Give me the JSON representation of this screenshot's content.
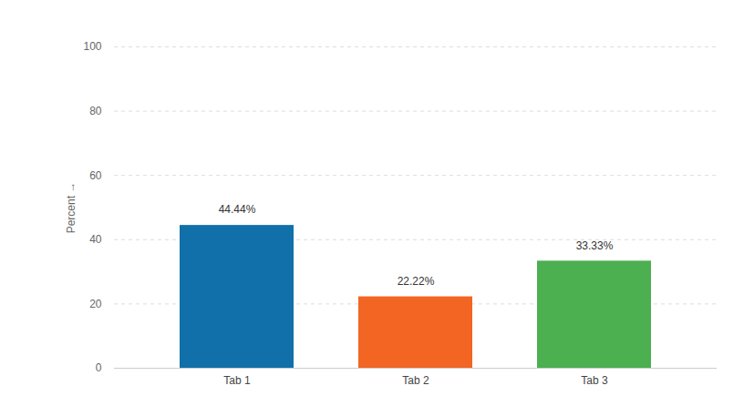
{
  "chart_data": {
    "type": "bar",
    "y_label": "Percent",
    "categories": [
      "Tab 1",
      "Tab 2",
      "Tab 3"
    ],
    "values": [
      44.44,
      22.22,
      33.33
    ],
    "value_labels": [
      "44.44%",
      "22.22%",
      "33.33%"
    ],
    "colors": [
      "#1170aa",
      "#f36523",
      "#4caf50"
    ],
    "ylim": [
      0,
      100
    ],
    "yticks": [
      0,
      20,
      40,
      60,
      80,
      100
    ],
    "grid": true,
    "data_labels": true
  }
}
